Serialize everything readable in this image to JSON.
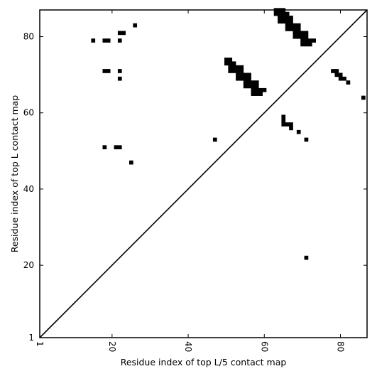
{
  "chart_data": {
    "type": "heatmap",
    "title": "",
    "xlabel": "Residue index of top L/5 contact map",
    "ylabel": "Residue index of top L contact map",
    "xlim": [
      1,
      87
    ],
    "ylim": [
      1,
      87
    ],
    "x_ticks": [
      1,
      20,
      40,
      60,
      80
    ],
    "y_ticks": [
      1,
      20,
      40,
      60,
      80
    ],
    "x_tick_labels": [
      "1",
      "20",
      "40",
      "60",
      "80"
    ],
    "y_tick_labels": [
      "1",
      "20",
      "40",
      "60",
      "80"
    ],
    "x_tick_rotation_deg": -90,
    "diagonal_line": {
      "from": [
        1,
        1
      ],
      "to": [
        87,
        87
      ]
    },
    "grid": false,
    "legend": "none",
    "colors": {
      "contact": "#000000",
      "background": "#ffffff",
      "axes": "#000000"
    },
    "upper_triangle_contacts": [
      [
        26,
        83
      ],
      [
        22,
        81
      ],
      [
        23,
        81
      ],
      [
        15,
        79
      ],
      [
        18,
        79
      ],
      [
        19,
        79
      ],
      [
        22,
        79
      ],
      [
        18,
        71
      ],
      [
        19,
        71
      ],
      [
        22,
        71
      ],
      [
        22,
        69
      ],
      [
        18,
        51
      ],
      [
        21,
        51
      ],
      [
        22,
        51
      ],
      [
        25,
        47
      ],
      [
        47,
        53
      ],
      [
        50,
        74
      ],
      [
        51,
        74
      ],
      [
        50,
        73
      ],
      [
        51,
        73
      ],
      [
        52,
        73
      ],
      [
        51,
        72
      ],
      [
        52,
        72
      ],
      [
        53,
        72
      ],
      [
        54,
        72
      ],
      [
        51,
        71
      ],
      [
        52,
        71
      ],
      [
        53,
        71
      ],
      [
        54,
        71
      ],
      [
        53,
        70
      ],
      [
        54,
        70
      ],
      [
        55,
        70
      ],
      [
        56,
        70
      ],
      [
        53,
        69
      ],
      [
        54,
        69
      ],
      [
        55,
        69
      ],
      [
        56,
        69
      ],
      [
        55,
        68
      ],
      [
        56,
        68
      ],
      [
        57,
        68
      ],
      [
        58,
        68
      ],
      [
        55,
        67
      ],
      [
        56,
        67
      ],
      [
        57,
        67
      ],
      [
        58,
        67
      ],
      [
        57,
        66
      ],
      [
        58,
        66
      ],
      [
        59,
        66
      ],
      [
        60,
        66
      ],
      [
        57,
        65
      ],
      [
        58,
        65
      ],
      [
        59,
        65
      ],
      [
        63,
        87
      ],
      [
        64,
        87
      ],
      [
        65,
        87
      ],
      [
        63,
        86
      ],
      [
        64,
        86
      ],
      [
        65,
        86
      ],
      [
        66,
        86
      ],
      [
        64,
        85
      ],
      [
        65,
        85
      ],
      [
        66,
        85
      ],
      [
        67,
        85
      ],
      [
        64,
        84
      ],
      [
        65,
        84
      ],
      [
        66,
        84
      ],
      [
        67,
        84
      ],
      [
        66,
        83
      ],
      [
        67,
        83
      ],
      [
        68,
        83
      ],
      [
        69,
        83
      ],
      [
        66,
        82
      ],
      [
        67,
        82
      ],
      [
        68,
        82
      ],
      [
        69,
        82
      ],
      [
        68,
        81
      ],
      [
        69,
        81
      ],
      [
        70,
        81
      ],
      [
        71,
        81
      ],
      [
        68,
        80
      ],
      [
        69,
        80
      ],
      [
        70,
        80
      ],
      [
        71,
        80
      ],
      [
        70,
        79
      ],
      [
        71,
        79
      ],
      [
        72,
        79
      ],
      [
        73,
        79
      ],
      [
        70,
        78
      ],
      [
        71,
        78
      ],
      [
        72,
        78
      ]
    ],
    "lower_triangle_contacts": [
      [
        65,
        59
      ],
      [
        65,
        58
      ],
      [
        65,
        57
      ],
      [
        66,
        57
      ],
      [
        67,
        57
      ],
      [
        67,
        56
      ],
      [
        69,
        55
      ],
      [
        71,
        53
      ],
      [
        71,
        22
      ],
      [
        78,
        71
      ],
      [
        79,
        71
      ],
      [
        79,
        70
      ],
      [
        80,
        70
      ],
      [
        80,
        69
      ],
      [
        81,
        69
      ],
      [
        82,
        68
      ],
      [
        86,
        64
      ]
    ]
  }
}
